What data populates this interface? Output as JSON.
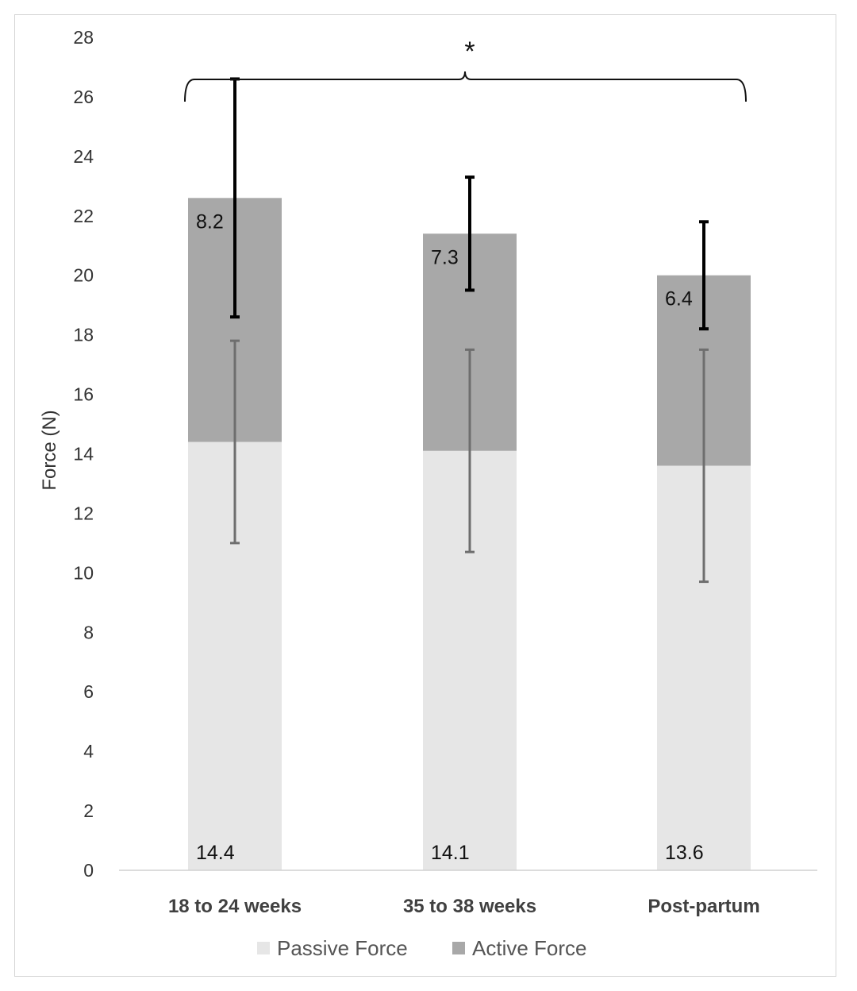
{
  "chart_data": {
    "type": "bar",
    "stacked": true,
    "categories": [
      "18 to 24 weeks",
      "35 to 38 weeks",
      "Post-partum"
    ],
    "series": [
      {
        "name": "Passive Force",
        "color": "#e6e6e6",
        "values": [
          14.4,
          14.1,
          13.6
        ],
        "labels": [
          "14.4",
          "14.1",
          "13.6"
        ],
        "error_low": [
          11.0,
          10.7,
          9.7
        ],
        "error_high": [
          17.8,
          17.5,
          17.5
        ],
        "error_color": "#6e6e6e"
      },
      {
        "name": "Active Force",
        "color": "#a8a8a8",
        "values": [
          8.2,
          7.3,
          6.4
        ],
        "labels": [
          "8.2",
          "7.3",
          "6.4"
        ],
        "error_low": [
          18.6,
          19.5,
          18.2
        ],
        "error_high": [
          26.6,
          23.3,
          21.8
        ],
        "error_color": "#000000"
      }
    ],
    "ylabel": "Force (N)",
    "xlabel": "",
    "ylim": [
      0,
      28
    ],
    "yticks": [
      "0",
      "2",
      "4",
      "6",
      "8",
      "10",
      "12",
      "14",
      "16",
      "18",
      "20",
      "22",
      "24",
      "26",
      "28"
    ],
    "grid": false,
    "legend": "bottom",
    "annotation": {
      "text": "*",
      "type": "brace",
      "spans": [
        "18 to 24 weeks",
        "Post-partum"
      ]
    }
  }
}
